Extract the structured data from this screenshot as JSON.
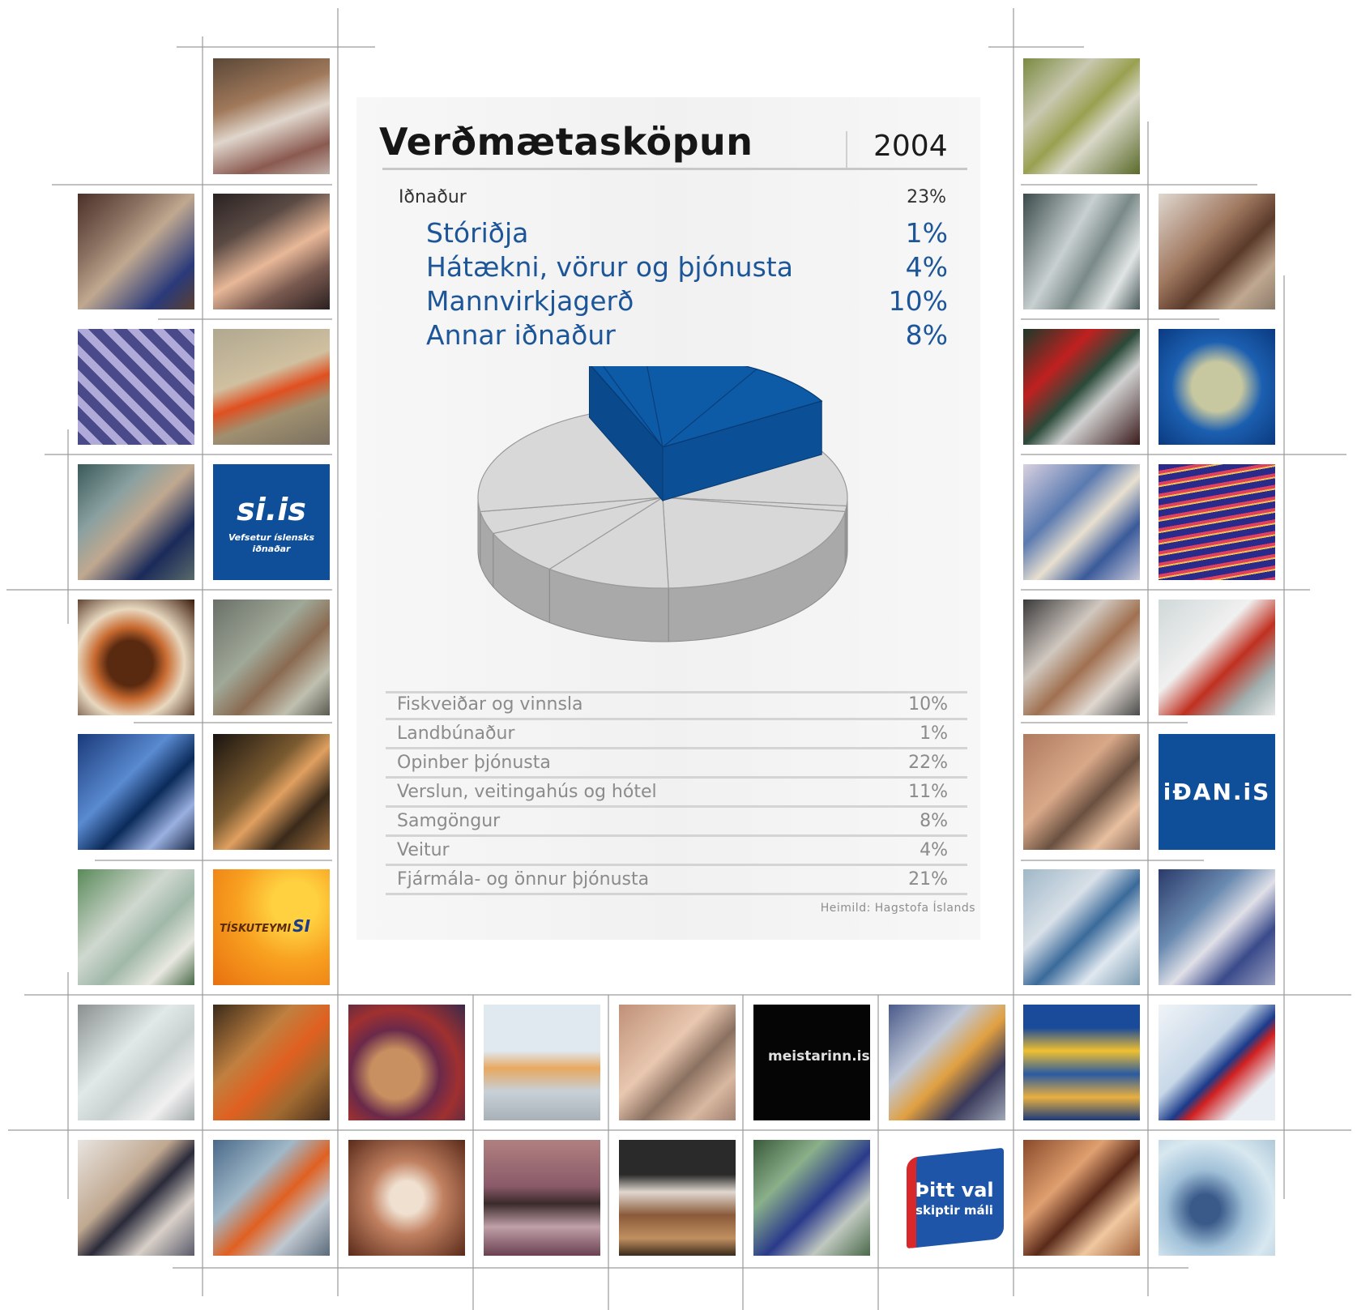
{
  "header": {
    "title": "Verðmætasköpun",
    "year": "2004"
  },
  "industry": {
    "label": "Iðnaður",
    "value": "23%",
    "items": [
      {
        "label": "Stóriðja",
        "value": "1%"
      },
      {
        "label": "Hátækni, vörur og þjónusta",
        "value": "4%"
      },
      {
        "label": "Mannvirkjagerð",
        "value": "10%"
      },
      {
        "label": "Annar iðnaður",
        "value": "8%"
      }
    ]
  },
  "other_sectors": [
    {
      "label": "Fiskveiðar og vinnsla",
      "value": "10%"
    },
    {
      "label": "Landbúnaður",
      "value": "1%"
    },
    {
      "label": "Opinber þjónusta",
      "value": "22%"
    },
    {
      "label": "Verslun, veitingahús og hótel",
      "value": "11%"
    },
    {
      "label": "Samgöngur",
      "value": "8%"
    },
    {
      "label": "Veitur",
      "value": "4%"
    },
    {
      "label": "Fjármála- og önnur þjónusta",
      "value": "21%"
    }
  ],
  "source": "Heimild: Hagstofa Íslands",
  "logos": {
    "siis_main": "si.is",
    "siis_sub": "Vefsetur íslensks iðnaðar",
    "tiskuteymi": "TÍSKUTEYMI",
    "tiskuteymi_si": "SI",
    "idan": "iÐAN.iS",
    "meistari": "meistarinn.is",
    "thitt_val_1": "Þitt val",
    "thitt_val_2": "skiptir máli"
  },
  "colors": {
    "highlight": "#0d5aa7",
    "gray_slice": "#d8d8d8",
    "blue_text": "#1c5699"
  },
  "chart_data": {
    "type": "pie",
    "title": "Verðmætasköpun",
    "subtitle": "2004",
    "categories": [
      "Iðnaður",
      "Fiskveiðar og vinnsla",
      "Landbúnaður",
      "Opinber þjónusta",
      "Verslun, veitingahús og hótel",
      "Samgöngur",
      "Veitur",
      "Fjármála- og önnur þjónusta"
    ],
    "values": [
      23,
      10,
      1,
      22,
      11,
      8,
      4,
      21
    ],
    "highlighted": "Iðnaður",
    "highlight_breakdown": {
      "categories": [
        "Stóriðja",
        "Hátækni, vörur og þjónusta",
        "Mannvirkjagerð",
        "Annar iðnaður"
      ],
      "values": [
        1,
        4,
        10,
        8
      ]
    },
    "style": "3d-exploded",
    "source": "Heimild: Hagstofa Íslands"
  }
}
